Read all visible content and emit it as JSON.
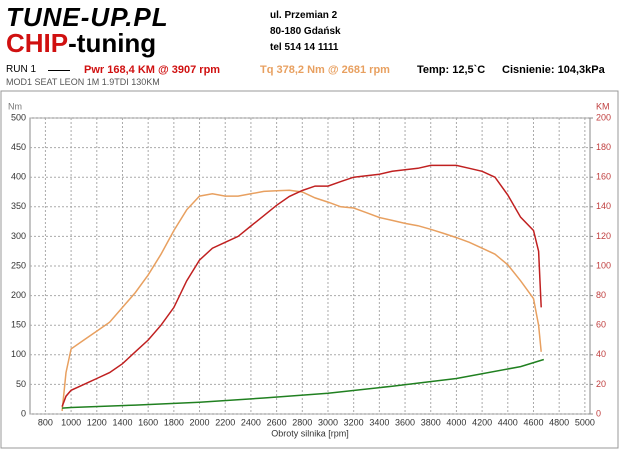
{
  "header": {
    "logo_top": "TUNE-UP.PL",
    "logo_bottom_red": "CHIP",
    "logo_bottom_black": "-tuning",
    "address": [
      "ul. Przemian 2",
      "80-180 Gdańsk",
      "tel 514 14 1111"
    ]
  },
  "info": {
    "run": "RUN 1",
    "power": "Pwr  168,4 KM @ 3907 rpm",
    "torque": "Tq  378,2 Nm @ 2681 rpm",
    "temp": "Temp: 12,5`C",
    "pressure": "Cisnienie: 104,3kPa"
  },
  "chart_data": {
    "type": "line",
    "subtitle": "MOD1 SEAT LEON 1M 1.9TDI 130KM",
    "x_label": "Obroty silnika [rpm]",
    "y_label": "Nm",
    "y2_label": "KM",
    "xlim": [
      680,
      5040
    ],
    "xticks": [
      800,
      1000,
      1200,
      1400,
      1600,
      1800,
      2000,
      2200,
      2400,
      2600,
      2800,
      3000,
      3200,
      3400,
      3600,
      3800,
      4000,
      4200,
      4400,
      4600,
      4800,
      5000
    ],
    "ylim": [
      0,
      500
    ],
    "yticks": [
      0,
      50,
      100,
      150,
      200,
      250,
      300,
      350,
      400,
      450,
      500
    ],
    "y2lim": [
      0,
      200
    ],
    "y2ticks": [
      0,
      20,
      40,
      60,
      80,
      100,
      120,
      140,
      160,
      180,
      200
    ],
    "grid": true,
    "series": [
      {
        "color": "#e8a060",
        "axis": "y",
        "x": [
          930,
          960,
          1000,
          1100,
          1200,
          1300,
          1400,
          1500,
          1600,
          1700,
          1800,
          1900,
          2000,
          2100,
          2200,
          2300,
          2400,
          2500,
          2600,
          2700,
          2800,
          2900,
          3000,
          3100,
          3200,
          3300,
          3400,
          3500,
          3600,
          3700,
          3800,
          3900,
          4000,
          4100,
          4200,
          4300,
          4400,
          4500,
          4600,
          4640,
          4660
        ],
        "values": [
          5,
          70,
          110,
          125,
          140,
          155,
          180,
          205,
          235,
          270,
          310,
          345,
          368,
          372,
          368,
          368,
          372,
          376,
          377,
          378,
          375,
          365,
          358,
          350,
          348,
          340,
          332,
          327,
          322,
          318,
          312,
          305,
          298,
          290,
          280,
          270,
          252,
          225,
          195,
          150,
          105
        ]
      },
      {
        "color": "#c02020",
        "axis": "y2",
        "x": [
          930,
          960,
          1000,
          1100,
          1200,
          1300,
          1400,
          1500,
          1600,
          1700,
          1800,
          1900,
          2000,
          2100,
          2200,
          2300,
          2400,
          2500,
          2600,
          2700,
          2800,
          2900,
          3000,
          3100,
          3200,
          3300,
          3400,
          3500,
          3600,
          3700,
          3800,
          3900,
          4000,
          4100,
          4200,
          4300,
          4400,
          4500,
          4600,
          4640,
          4660
        ],
        "values": [
          5,
          12,
          16,
          20,
          24,
          28,
          34,
          42,
          50,
          60,
          72,
          90,
          104,
          112,
          116,
          120,
          127,
          134,
          141,
          147,
          151,
          154,
          154,
          157,
          160,
          161,
          162,
          164,
          165,
          166,
          168,
          168,
          168,
          166,
          164,
          160,
          148,
          133,
          124,
          110,
          72
        ]
      },
      {
        "color": "#208020",
        "axis": "y",
        "x": [
          930,
          1000,
          1500,
          2000,
          2500,
          3000,
          3500,
          4000,
          4500,
          4680
        ],
        "values": [
          10,
          11,
          15,
          20,
          27,
          35,
          47,
          60,
          80,
          92
        ]
      }
    ]
  }
}
